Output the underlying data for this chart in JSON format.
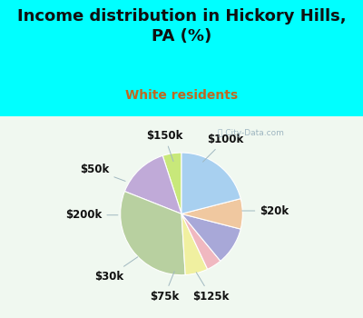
{
  "title": "Income distribution in Hickory Hills,\nPA (%)",
  "subtitle": "White residents",
  "watermark": "ⓘ City-Data.com",
  "labels": [
    "$150k",
    "$100k",
    "$20k",
    "$125k",
    "$75k",
    "$30k",
    "$200k",
    "$50k"
  ],
  "values": [
    5,
    14,
    32,
    6,
    4,
    10,
    8,
    21
  ],
  "colors": [
    "#c8e87a",
    "#c0aad8",
    "#b8d0a0",
    "#f0f0a0",
    "#f0b8c0",
    "#a8a8d8",
    "#f0c8a0",
    "#a8d0f0"
  ],
  "background_top": "#00ffff",
  "background_chart_top": "#d8f0d8",
  "background_chart_bottom": "#f0f8f0",
  "title_color": "#101010",
  "subtitle_color": "#c06820",
  "startangle": 90,
  "label_color": "#101010",
  "label_fontsize": 8.5,
  "title_fontsize": 13,
  "subtitle_fontsize": 10,
  "line_color": "#a0b8c0"
}
